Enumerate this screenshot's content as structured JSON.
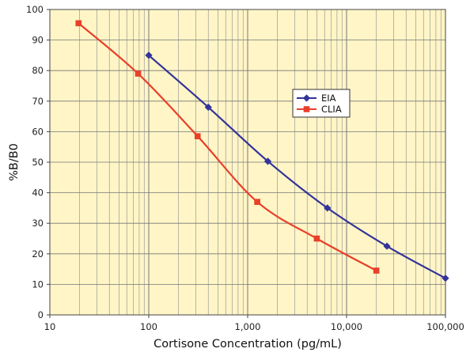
{
  "chart_data": {
    "type": "line",
    "xlabel": "Cortisone Concentration (pg/mL)",
    "ylabel": "%B/B0",
    "xscale": "log",
    "xlim": [
      10,
      100000
    ],
    "ylim": [
      0,
      100
    ],
    "x_ticks": [
      10,
      100,
      1000,
      10000,
      100000
    ],
    "x_tick_labels": [
      "10",
      "100",
      "1,000",
      "10,000",
      "100,000"
    ],
    "y_ticks": [
      0,
      10,
      20,
      30,
      40,
      50,
      60,
      70,
      80,
      90,
      100
    ],
    "y_tick_labels": [
      "0",
      "10",
      "20",
      "30",
      "40",
      "50",
      "60",
      "70",
      "80",
      "90",
      "100"
    ],
    "grid": true,
    "legend_position": "center-right",
    "colors": {
      "plot_background": "#fff5c6",
      "grid": "#9a9a9a",
      "axis": "#444444"
    },
    "series": [
      {
        "name": "EIA",
        "color": "#33339a",
        "marker": "diamond",
        "x": [
          100,
          400,
          1600,
          6400,
          25600,
          100000
        ],
        "y": [
          85,
          68,
          50.3,
          35,
          22.5,
          12
        ]
      },
      {
        "name": "CLIA",
        "color": "#e8402a",
        "marker": "square",
        "x": [
          19.5,
          78,
          312,
          1250,
          5000,
          20000
        ],
        "y": [
          95.5,
          79,
          58.5,
          37,
          25,
          14.5
        ]
      }
    ]
  }
}
